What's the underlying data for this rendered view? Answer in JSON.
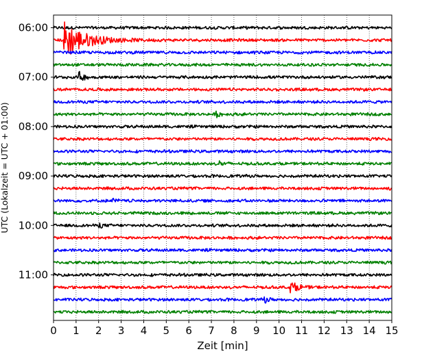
{
  "chart_data": {
    "type": "line",
    "title": "",
    "xlabel": "Zeit  [min]",
    "ylabel": "UTC (Lokalzeit = UTC + 01:00)",
    "xlim": [
      0,
      15
    ],
    "x_ticks": [
      "0",
      "1",
      "2",
      "3",
      "4",
      "5",
      "6",
      "7",
      "8",
      "9",
      "10",
      "11",
      "12",
      "13",
      "14",
      "15"
    ],
    "y_ticks": [
      {
        "label": "06:00",
        "trace": 0
      },
      {
        "label": "07:00",
        "trace": 4
      },
      {
        "label": "08:00",
        "trace": 8
      },
      {
        "label": "09:00",
        "trace": 12
      },
      {
        "label": "10:00",
        "trace": 16
      },
      {
        "label": "11:00",
        "trace": 20
      }
    ],
    "grid": {
      "x": true,
      "style": "dotted"
    },
    "color_cycle": [
      "#000000",
      "#ff0000",
      "#0000ff",
      "#008000"
    ],
    "traces": [
      {
        "start": "06:00",
        "events": []
      },
      {
        "start": "06:15",
        "events": [
          {
            "t": 0.45,
            "amp": 1.6,
            "dur": 2.4
          }
        ]
      },
      {
        "start": "06:30",
        "events": []
      },
      {
        "start": "06:45",
        "events": []
      },
      {
        "start": "07:00",
        "events": [
          {
            "t": 1.1,
            "amp": 0.45,
            "dur": 0.6
          }
        ]
      },
      {
        "start": "07:15",
        "events": []
      },
      {
        "start": "07:30",
        "events": []
      },
      {
        "start": "07:45",
        "events": [
          {
            "t": 7.2,
            "amp": 0.2,
            "dur": 0.6
          }
        ]
      },
      {
        "start": "08:00",
        "events": []
      },
      {
        "start": "08:15",
        "events": []
      },
      {
        "start": "08:30",
        "events": []
      },
      {
        "start": "08:45",
        "events": [
          {
            "t": 7.3,
            "amp": 0.25,
            "dur": 0.5
          }
        ]
      },
      {
        "start": "09:00",
        "events": []
      },
      {
        "start": "09:15",
        "events": [
          {
            "t": 14.8,
            "amp": 0.18,
            "dur": 0.2
          }
        ]
      },
      {
        "start": "09:30",
        "events": [
          {
            "t": 2.6,
            "amp": 0.18,
            "dur": 0.4
          }
        ]
      },
      {
        "start": "09:45",
        "events": []
      },
      {
        "start": "10:00",
        "events": [
          {
            "t": 2.0,
            "amp": 0.22,
            "dur": 0.4
          }
        ]
      },
      {
        "start": "10:15",
        "events": []
      },
      {
        "start": "10:30",
        "events": []
      },
      {
        "start": "10:45",
        "events": []
      },
      {
        "start": "11:00",
        "events": []
      },
      {
        "start": "11:15",
        "events": [
          {
            "t": 10.5,
            "amp": 0.45,
            "dur": 0.9
          }
        ]
      },
      {
        "start": "11:30",
        "events": [
          {
            "t": 9.3,
            "amp": 0.3,
            "dur": 0.5
          }
        ]
      },
      {
        "start": "11:45",
        "events": []
      }
    ]
  }
}
